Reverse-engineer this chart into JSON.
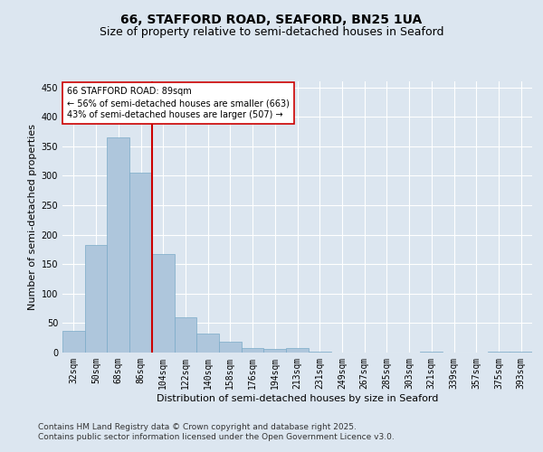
{
  "title1": "66, STAFFORD ROAD, SEAFORD, BN25 1UA",
  "title2": "Size of property relative to semi-detached houses in Seaford",
  "xlabel": "Distribution of semi-detached houses by size in Seaford",
  "ylabel": "Number of semi-detached properties",
  "categories": [
    "32sqm",
    "50sqm",
    "68sqm",
    "86sqm",
    "104sqm",
    "122sqm",
    "140sqm",
    "158sqm",
    "176sqm",
    "194sqm",
    "213sqm",
    "231sqm",
    "249sqm",
    "267sqm",
    "285sqm",
    "303sqm",
    "321sqm",
    "339sqm",
    "357sqm",
    "375sqm",
    "393sqm"
  ],
  "values": [
    37,
    183,
    365,
    305,
    167,
    60,
    32,
    18,
    8,
    6,
    7,
    1,
    0,
    0,
    0,
    0,
    2,
    0,
    0,
    1,
    2
  ],
  "bar_color": "#aec6dc",
  "bar_edge_color": "#7aaac8",
  "vline_color": "#cc0000",
  "annotation_text": "66 STAFFORD ROAD: 89sqm\n← 56% of semi-detached houses are smaller (663)\n43% of semi-detached houses are larger (507) →",
  "annotation_box_color": "#ffffff",
  "annotation_box_edge": "#cc0000",
  "bg_color": "#dce6f0",
  "plot_bg_color": "#dce6f0",
  "footer1": "Contains HM Land Registry data © Crown copyright and database right 2025.",
  "footer2": "Contains public sector information licensed under the Open Government Licence v3.0.",
  "ylim": [
    0,
    460
  ],
  "yticks": [
    0,
    50,
    100,
    150,
    200,
    250,
    300,
    350,
    400,
    450
  ],
  "title1_fontsize": 10,
  "title2_fontsize": 9,
  "footer_fontsize": 6.5,
  "tick_fontsize": 7,
  "label_fontsize": 8,
  "ann_fontsize": 7
}
